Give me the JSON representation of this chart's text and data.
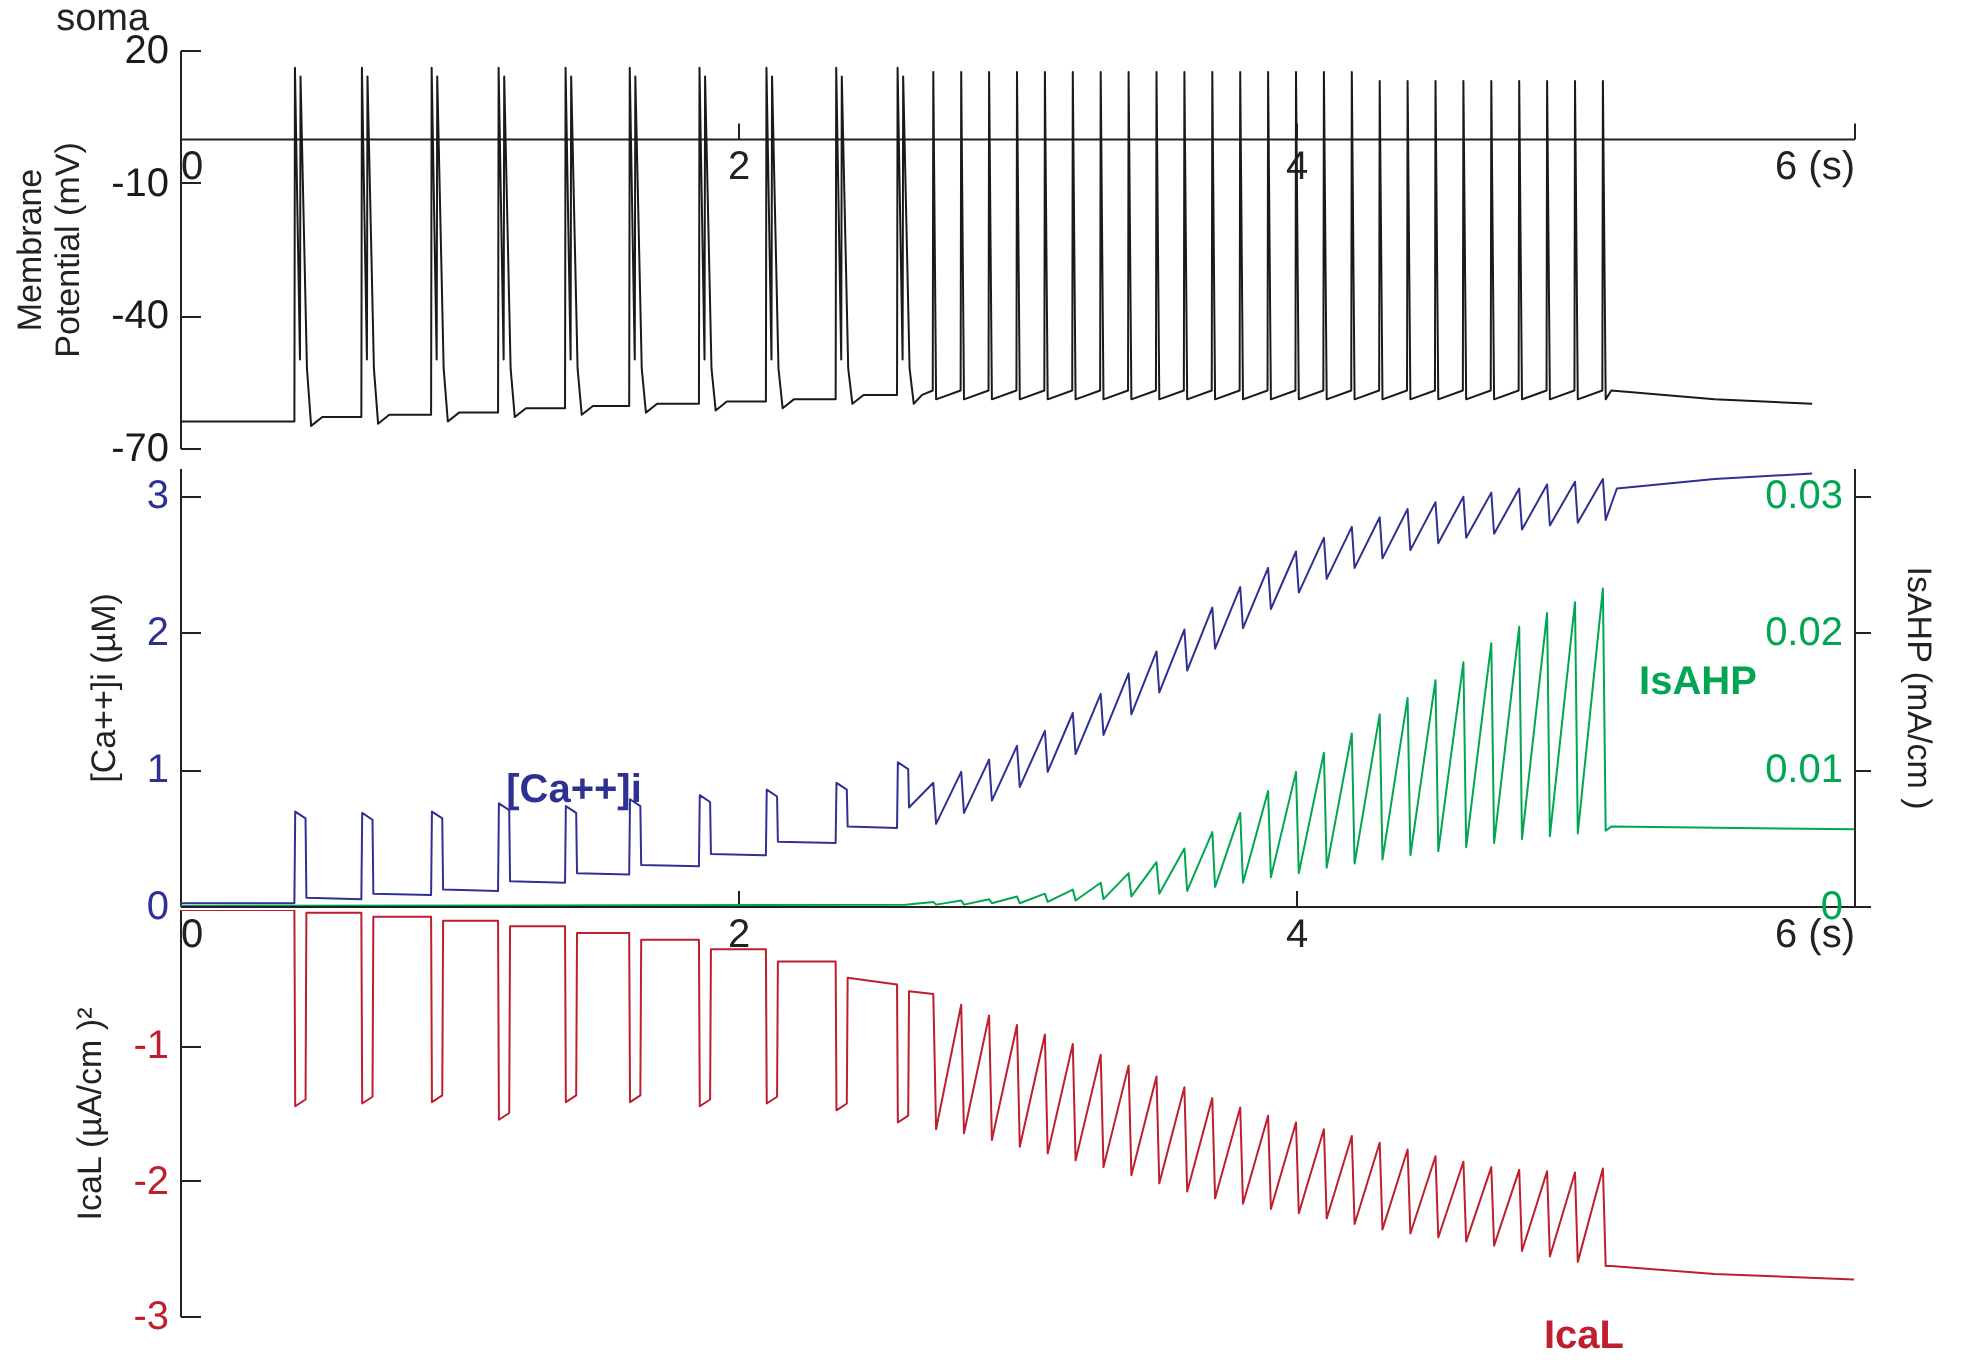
{
  "chart_data": [
    {
      "type": "line",
      "title": "soma",
      "ylabel": "Membrane Potential (mV)",
      "xlim": [
        0,
        6
      ],
      "xticks": [
        0,
        2,
        4,
        {
          "value": 6,
          "label": "6 (s)"
        }
      ],
      "ylim": [
        -70,
        20
      ],
      "yticks": [
        -70,
        -40,
        -10,
        20
      ],
      "series": [
        {
          "color": "#1a1a1a",
          "x": [
            0,
            0.41,
            0.412,
            0.43,
            0.432,
            0.455,
            0.47,
            0.51,
            0.65,
            0.652,
            0.67,
            0.672,
            0.695,
            0.71,
            0.75,
            0.9,
            0.902,
            0.92,
            0.922,
            0.945,
            0.96,
            1.0,
            1.14,
            1.142,
            1.16,
            1.162,
            1.185,
            1.2,
            1.24,
            1.38,
            1.382,
            1.4,
            1.402,
            1.425,
            1.44,
            1.48,
            1.61,
            1.612,
            1.63,
            1.632,
            1.655,
            1.67,
            1.71,
            1.86,
            1.862,
            1.88,
            1.882,
            1.905,
            1.92,
            1.96,
            2.1,
            2.102,
            2.12,
            2.122,
            2.145,
            2.16,
            2.2,
            2.35,
            2.352,
            2.37,
            2.372,
            2.395,
            2.41,
            2.45,
            2.57,
            2.572,
            2.59,
            2.592,
            2.615,
            2.63,
            2.66,
            2.698,
            2.7,
            2.71,
            2.798,
            2.8,
            2.81,
            2.898,
            2.9,
            2.91,
            2.998,
            3.0,
            3.01,
            3.098,
            3.1,
            3.11,
            3.198,
            3.2,
            3.21,
            3.298,
            3.3,
            3.31,
            3.398,
            3.4,
            3.41,
            3.498,
            3.5,
            3.51,
            3.598,
            3.6,
            3.61,
            3.698,
            3.7,
            3.71,
            3.798,
            3.8,
            3.81,
            3.898,
            3.9,
            3.91,
            3.998,
            4.0,
            4.01,
            4.098,
            4.1,
            4.11,
            4.198,
            4.2,
            4.21,
            4.298,
            4.3,
            4.31,
            4.398,
            4.4,
            4.41,
            4.498,
            4.5,
            4.51,
            4.598,
            4.6,
            4.61,
            4.698,
            4.7,
            4.71,
            4.798,
            4.8,
            4.81,
            4.898,
            4.9,
            4.91,
            4.998,
            5.0,
            5.01,
            5.098,
            5.1,
            5.11,
            5.13,
            5.5,
            5.85
          ],
          "values": [
            -64,
            -64,
            16,
            -50,
            14,
            -52,
            -65,
            -63,
            -63,
            16,
            -50,
            14,
            -52,
            -64.5,
            -62.5,
            -62.5,
            16,
            -50,
            14,
            -52,
            -64,
            -62,
            -62,
            16,
            -50,
            14,
            -52,
            -63,
            -61,
            -61,
            16,
            -50,
            14,
            -52,
            -62.5,
            -60.5,
            -60.5,
            16,
            -50,
            14,
            -52,
            -62,
            -60,
            -60,
            16,
            -50,
            14,
            -52,
            -61.5,
            -59.5,
            -59.5,
            16,
            -50,
            14,
            -52,
            -61,
            -59,
            -59,
            16,
            -50,
            14,
            -52,
            -60,
            -58,
            -58,
            16,
            -50,
            14,
            -52,
            -60,
            -58,
            -57,
            15,
            -59,
            -57,
            15,
            -59,
            -57,
            15,
            -59,
            -57,
            15,
            -59,
            -57,
            15,
            -59,
            -57,
            15,
            -59,
            -57,
            15,
            -59,
            -57,
            15,
            -59,
            -57,
            15,
            -59,
            -57,
            15,
            -59,
            -57,
            15,
            -59,
            -57,
            15,
            -59,
            -57,
            15,
            -59,
            -57,
            15,
            -59,
            -57,
            15,
            -59,
            -57,
            15,
            -59,
            -57,
            13,
            -59,
            -57,
            13,
            -59,
            -57,
            13,
            -59,
            -57,
            13,
            -59,
            -57,
            13,
            -59,
            -57,
            13,
            -59,
            -57,
            13,
            -59,
            -57,
            13,
            -59,
            -57,
            13,
            -59,
            -57,
            -59,
            -60
          ]
        }
      ]
    },
    {
      "type": "line",
      "ylabel": "[Ca++]i (µM)",
      "y2label": "IsAHP (mA/cm )",
      "xlim": [
        0,
        6
      ],
      "xticks": [
        0,
        2,
        4,
        {
          "value": 6,
          "label": "6 (s)"
        }
      ],
      "ylim": [
        0,
        3.2
      ],
      "yticks": [
        0,
        1,
        2,
        3
      ],
      "y2lim": [
        0,
        0.032
      ],
      "y2ticks": [
        0,
        0.01,
        0.02,
        0.03
      ],
      "series": [
        {
          "name": "[Ca++]i",
          "color": "#2e3192",
          "x": [
            0,
            0.41,
            0.413,
            0.45,
            0.453,
            0.65,
            0.653,
            0.69,
            0.693,
            0.9,
            0.903,
            0.94,
            0.943,
            1.14,
            1.143,
            1.18,
            1.183,
            1.38,
            1.383,
            1.42,
            1.423,
            1.61,
            1.613,
            1.65,
            1.653,
            1.86,
            1.863,
            1.9,
            1.903,
            2.1,
            2.103,
            2.14,
            2.143,
            2.35,
            2.353,
            2.39,
            2.393,
            2.57,
            2.573,
            2.61,
            2.613,
            2.7,
            2.71,
            2.8,
            2.81,
            2.9,
            2.91,
            3.0,
            3.01,
            3.1,
            3.11,
            3.2,
            3.21,
            3.3,
            3.31,
            3.4,
            3.41,
            3.5,
            3.51,
            3.6,
            3.61,
            3.7,
            3.71,
            3.8,
            3.81,
            3.9,
            3.91,
            4.0,
            4.01,
            4.1,
            4.11,
            4.2,
            4.21,
            4.3,
            4.31,
            4.4,
            4.41,
            4.5,
            4.51,
            4.6,
            4.61,
            4.7,
            4.71,
            4.8,
            4.81,
            4.9,
            4.91,
            5.0,
            5.01,
            5.1,
            5.11,
            5.15,
            5.5,
            5.85
          ],
          "values": [
            0.02,
            0.02,
            0.69,
            0.64,
            0.06,
            0.05,
            0.68,
            0.63,
            0.09,
            0.08,
            0.69,
            0.64,
            0.12,
            0.11,
            0.75,
            0.7,
            0.18,
            0.17,
            0.73,
            0.68,
            0.24,
            0.23,
            0.78,
            0.73,
            0.3,
            0.29,
            0.81,
            0.76,
            0.38,
            0.37,
            0.85,
            0.8,
            0.47,
            0.46,
            0.9,
            0.85,
            0.58,
            0.57,
            1.05,
            1.0,
            0.72,
            0.9,
            0.6,
            0.98,
            0.68,
            1.07,
            0.77,
            1.17,
            0.87,
            1.28,
            0.98,
            1.41,
            1.11,
            1.55,
            1.25,
            1.7,
            1.4,
            1.86,
            1.56,
            2.02,
            1.72,
            2.18,
            1.88,
            2.33,
            2.03,
            2.47,
            2.17,
            2.59,
            2.29,
            2.69,
            2.39,
            2.77,
            2.47,
            2.84,
            2.54,
            2.9,
            2.6,
            2.95,
            2.65,
            2.99,
            2.69,
            3.02,
            2.72,
            3.05,
            2.75,
            3.08,
            2.78,
            3.1,
            2.8,
            3.12,
            2.82,
            3.05,
            3.12,
            3.16
          ]
        },
        {
          "name": "IsAHP",
          "color": "#00a651",
          "axis": "y2",
          "x": [
            0,
            2.6,
            2.7,
            2.71,
            2.8,
            2.81,
            2.9,
            2.91,
            3.0,
            3.01,
            3.1,
            3.11,
            3.2,
            3.21,
            3.3,
            3.31,
            3.4,
            3.41,
            3.5,
            3.51,
            3.6,
            3.61,
            3.7,
            3.71,
            3.8,
            3.81,
            3.9,
            3.91,
            4.0,
            4.01,
            4.1,
            4.11,
            4.2,
            4.21,
            4.3,
            4.31,
            4.4,
            4.41,
            4.5,
            4.51,
            4.6,
            4.61,
            4.7,
            4.71,
            4.8,
            4.81,
            4.9,
            4.91,
            5.0,
            5.01,
            5.1,
            5.11,
            5.13,
            6.0
          ],
          "values": [
            0,
            0.0001,
            0.0003,
            0.0001,
            0.0004,
            0.0001,
            0.0005,
            0.0002,
            0.0007,
            0.0002,
            0.0009,
            0.0003,
            0.0012,
            0.0004,
            0.0017,
            0.0005,
            0.0024,
            0.0007,
            0.0032,
            0.0009,
            0.0042,
            0.0011,
            0.0054,
            0.0014,
            0.0068,
            0.0017,
            0.0084,
            0.0021,
            0.0098,
            0.0024,
            0.0112,
            0.0028,
            0.0126,
            0.0031,
            0.014,
            0.0034,
            0.0152,
            0.0037,
            0.0165,
            0.004,
            0.0178,
            0.0043,
            0.0192,
            0.0046,
            0.0204,
            0.0049,
            0.0214,
            0.0051,
            0.0222,
            0.0053,
            0.0232,
            0.0055,
            0.0058,
            0.0056
          ]
        }
      ]
    },
    {
      "type": "line",
      "ylabel": "IcaL (µA/cm )²",
      "tick_labels": "y",
      "xlim": [
        0,
        6
      ],
      "ylim": [
        -3,
        0
      ],
      "yticks": [
        -3,
        -2,
        -1
      ],
      "series": [
        {
          "name": "IcaL",
          "color": "#be1e2d",
          "x": [
            0,
            0.41,
            0.413,
            0.45,
            0.453,
            0.65,
            0.653,
            0.69,
            0.693,
            0.9,
            0.903,
            0.94,
            0.943,
            1.14,
            1.143,
            1.18,
            1.183,
            1.38,
            1.383,
            1.42,
            1.423,
            1.61,
            1.613,
            1.65,
            1.653,
            1.86,
            1.863,
            1.9,
            1.903,
            2.1,
            2.103,
            2.14,
            2.143,
            2.35,
            2.353,
            2.39,
            2.393,
            2.57,
            2.573,
            2.61,
            2.613,
            2.7,
            2.71,
            2.8,
            2.81,
            2.9,
            2.91,
            3.0,
            3.01,
            3.1,
            3.11,
            3.2,
            3.21,
            3.3,
            3.31,
            3.4,
            3.41,
            3.5,
            3.51,
            3.6,
            3.61,
            3.7,
            3.71,
            3.8,
            3.81,
            3.9,
            3.91,
            4.0,
            4.01,
            4.1,
            4.11,
            4.2,
            4.21,
            4.3,
            4.31,
            4.4,
            4.41,
            4.5,
            4.51,
            4.6,
            4.61,
            4.7,
            4.71,
            4.8,
            4.81,
            4.9,
            4.91,
            5.0,
            5.01,
            5.1,
            5.11,
            5.13,
            5.5,
            6.0
          ],
          "values": [
            0,
            0,
            -1.45,
            -1.4,
            -0.02,
            -0.02,
            -1.43,
            -1.38,
            -0.05,
            -0.05,
            -1.42,
            -1.37,
            -0.08,
            -0.08,
            -1.55,
            -1.5,
            -0.12,
            -0.12,
            -1.42,
            -1.37,
            -0.17,
            -0.17,
            -1.42,
            -1.37,
            -0.22,
            -0.22,
            -1.45,
            -1.4,
            -0.29,
            -0.29,
            -1.43,
            -1.38,
            -0.38,
            -0.38,
            -1.48,
            -1.43,
            -0.5,
            -0.55,
            -1.57,
            -1.52,
            -0.6,
            -0.62,
            -1.62,
            -0.7,
            -1.65,
            -0.78,
            -1.7,
            -0.85,
            -1.75,
            -0.92,
            -1.8,
            -0.99,
            -1.85,
            -1.07,
            -1.9,
            -1.15,
            -1.96,
            -1.23,
            -2.02,
            -1.31,
            -2.08,
            -1.39,
            -2.13,
            -1.46,
            -2.17,
            -1.52,
            -2.21,
            -1.57,
            -2.24,
            -1.62,
            -2.28,
            -1.67,
            -2.32,
            -1.72,
            -2.36,
            -1.77,
            -2.39,
            -1.82,
            -2.42,
            -1.86,
            -2.45,
            -1.9,
            -2.48,
            -1.92,
            -2.52,
            -1.93,
            -2.56,
            -1.94,
            -2.6,
            -1.91,
            -2.63,
            -2.63,
            -2.69,
            -2.73
          ]
        }
      ]
    }
  ]
}
